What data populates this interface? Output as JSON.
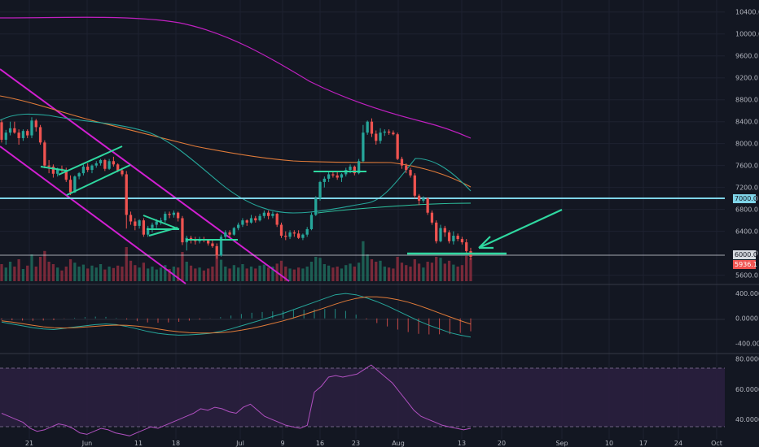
{
  "colors": {
    "background": "#131722",
    "grid": "#1e2230",
    "up": "#26a69a",
    "down": "#ef5350",
    "up_vol": "#1f6b5c",
    "down_vol": "#8b2d3d",
    "ma_fast": "#26a69a",
    "ma_mid": "#e07b39",
    "ma_slow": "#c020c0",
    "channel": "#d21fd2",
    "annotation": "#2fd8a0",
    "level": "#7fd4e8",
    "rsi": "#b050c0",
    "rsi_band": "#2a1f3e",
    "price_label_bg": "#ef5350"
  },
  "chart_data": [
    {
      "type": "candlestick",
      "pane": "price",
      "y_axis": {
        "ticks": [
          "10400.0",
          "10000.0",
          "9600.0",
          "9200.0",
          "8800.0",
          "8400.0",
          "8000.0",
          "7600.0",
          "7200.0",
          "7000.0",
          "6800.0",
          "6400.0",
          "6000.0",
          "5600.0"
        ],
        "range": [
          5550,
          10500
        ]
      },
      "x_axis": {
        "ticks": [
          "21",
          "Jun",
          "11",
          "18",
          "Jul",
          "9",
          "16",
          "23",
          "Aug",
          "13",
          "20",
          "Sep",
          "10",
          "17",
          "24",
          "Oct"
        ]
      },
      "levels": [
        {
          "name": "resistance",
          "value": 7000,
          "label": "7000.0"
        },
        {
          "name": "support",
          "value": 6000,
          "label": "6000.0"
        }
      ],
      "last_price_label": "5936.1",
      "candles": [
        [
          8390,
          8430,
          8020,
          8070
        ],
        [
          8070,
          8250,
          7980,
          8200
        ],
        [
          8200,
          8400,
          8150,
          8280
        ],
        [
          8280,
          8400,
          8180,
          8200
        ],
        [
          8200,
          8260,
          7980,
          8100
        ],
        [
          8100,
          8260,
          8050,
          8230
        ],
        [
          8230,
          8260,
          8100,
          8150
        ],
        [
          8150,
          8480,
          8100,
          8420
        ],
        [
          8420,
          8450,
          8220,
          8300
        ],
        [
          8300,
          8340,
          7980,
          8020
        ],
        [
          8020,
          8060,
          7550,
          7600
        ],
        [
          7600,
          7700,
          7460,
          7580
        ],
        [
          7580,
          7620,
          7380,
          7450
        ],
        [
          7450,
          7560,
          7400,
          7540
        ],
        [
          7540,
          7600,
          7480,
          7520
        ],
        [
          7520,
          7560,
          7300,
          7340
        ],
        [
          7340,
          7420,
          7060,
          7110
        ],
        [
          7110,
          7420,
          7100,
          7400
        ],
        [
          7400,
          7480,
          7350,
          7460
        ],
        [
          7460,
          7620,
          7420,
          7580
        ],
        [
          7580,
          7640,
          7480,
          7520
        ],
        [
          7520,
          7620,
          7460,
          7600
        ],
        [
          7600,
          7680,
          7560,
          7640
        ],
        [
          7640,
          7720,
          7600,
          7700
        ],
        [
          7700,
          7720,
          7500,
          7540
        ],
        [
          7540,
          7720,
          7520,
          7680
        ],
        [
          7680,
          7760,
          7580,
          7620
        ],
        [
          7620,
          7640,
          7480,
          7510
        ],
        [
          7510,
          7560,
          7400,
          7440
        ],
        [
          7440,
          7500,
          6450,
          6700
        ],
        [
          6700,
          6760,
          6520,
          6580
        ],
        [
          6580,
          6640,
          6420,
          6500
        ],
        [
          6500,
          6620,
          6450,
          6600
        ],
        [
          6600,
          6640,
          6300,
          6340
        ],
        [
          6340,
          6500,
          6300,
          6460
        ],
        [
          6460,
          6560,
          6380,
          6520
        ],
        [
          6520,
          6620,
          6460,
          6580
        ],
        [
          6580,
          6650,
          6520,
          6600
        ],
        [
          6600,
          6760,
          6560,
          6720
        ],
        [
          6720,
          6760,
          6640,
          6700
        ],
        [
          6700,
          6780,
          6650,
          6740
        ],
        [
          6740,
          6760,
          6580,
          6640
        ],
        [
          6640,
          6680,
          6150,
          6200
        ],
        [
          6200,
          6320,
          6050,
          6280
        ],
        [
          6280,
          6320,
          6180,
          6240
        ],
        [
          6240,
          6300,
          6160,
          6220
        ],
        [
          6220,
          6300,
          6180,
          6260
        ],
        [
          6260,
          6300,
          6200,
          6240
        ],
        [
          6240,
          6260,
          6140,
          6180
        ],
        [
          6180,
          6240,
          6100,
          6130
        ],
        [
          6130,
          6180,
          5900,
          5960
        ],
        [
          5960,
          6340,
          5940,
          6300
        ],
        [
          6300,
          6420,
          6260,
          6380
        ],
        [
          6380,
          6420,
          6280,
          6340
        ],
        [
          6340,
          6480,
          6320,
          6460
        ],
        [
          6460,
          6560,
          6420,
          6520
        ],
        [
          6520,
          6640,
          6480,
          6600
        ],
        [
          6600,
          6620,
          6500,
          6560
        ],
        [
          6560,
          6700,
          6540,
          6640
        ],
        [
          6640,
          6680,
          6560,
          6600
        ],
        [
          6600,
          6720,
          6580,
          6680
        ],
        [
          6680,
          6780,
          6640,
          6740
        ],
        [
          6740,
          6780,
          6620,
          6680
        ],
        [
          6680,
          6760,
          6640,
          6720
        ],
        [
          6720,
          6740,
          6480,
          6520
        ],
        [
          6520,
          6560,
          6280,
          6320
        ],
        [
          6320,
          6400,
          6240,
          6300
        ],
        [
          6300,
          6420,
          6260,
          6380
        ],
        [
          6380,
          6420,
          6300,
          6360
        ],
        [
          6360,
          6420,
          6260,
          6280
        ],
        [
          6280,
          6360,
          6240,
          6340
        ],
        [
          6340,
          6480,
          6300,
          6440
        ],
        [
          6440,
          6740,
          6420,
          6700
        ],
        [
          6700,
          7040,
          6680,
          7000
        ],
        [
          7000,
          7320,
          6960,
          7300
        ],
        [
          7300,
          7400,
          7200,
          7360
        ],
        [
          7360,
          7480,
          7300,
          7440
        ],
        [
          7440,
          7480,
          7380,
          7420
        ],
        [
          7420,
          7480,
          7340,
          7380
        ],
        [
          7380,
          7460,
          7300,
          7440
        ],
        [
          7440,
          7560,
          7400,
          7520
        ],
        [
          7520,
          7620,
          7460,
          7580
        ],
        [
          7580,
          7600,
          7420,
          7460
        ],
        [
          7460,
          7720,
          7440,
          7680
        ],
        [
          7680,
          8340,
          7660,
          8200
        ],
        [
          8200,
          8420,
          8160,
          8400
        ],
        [
          8400,
          8460,
          8120,
          8180
        ],
        [
          8180,
          8240,
          7980,
          8050
        ],
        [
          8050,
          8280,
          8000,
          8200
        ],
        [
          8200,
          8260,
          8140,
          8220
        ],
        [
          8220,
          8260,
          8160,
          8200
        ],
        [
          8200,
          8240,
          8150,
          8170
        ],
        [
          8170,
          8200,
          7700,
          7720
        ],
        [
          7720,
          7760,
          7540,
          7600
        ],
        [
          7600,
          7640,
          7460,
          7520
        ],
        [
          7520,
          7560,
          7380,
          7420
        ],
        [
          7420,
          7460,
          7000,
          7050
        ],
        [
          7050,
          7080,
          6880,
          6960
        ],
        [
          6960,
          7040,
          6920,
          7000
        ],
        [
          7000,
          7020,
          6700,
          6740
        ],
        [
          6740,
          6780,
          6520,
          6560
        ],
        [
          6560,
          6600,
          6180,
          6220
        ],
        [
          6220,
          6520,
          6200,
          6460
        ],
        [
          6460,
          6500,
          6300,
          6380
        ],
        [
          6380,
          6420,
          6180,
          6220
        ],
        [
          6220,
          6400,
          6160,
          6320
        ],
        [
          6320,
          6360,
          6220,
          6260
        ],
        [
          6260,
          6300,
          6160,
          6200
        ],
        [
          6200,
          6260,
          6000,
          6040
        ],
        [
          6040,
          6100,
          5880,
          5936
        ]
      ],
      "volume_ratios": [
        0.35,
        0.28,
        0.4,
        0.3,
        0.45,
        0.25,
        0.32,
        0.55,
        0.3,
        0.5,
        0.62,
        0.4,
        0.35,
        0.28,
        0.22,
        0.3,
        0.45,
        0.38,
        0.3,
        0.34,
        0.26,
        0.32,
        0.28,
        0.35,
        0.24,
        0.3,
        0.27,
        0.32,
        0.3,
        0.7,
        0.42,
        0.33,
        0.28,
        0.38,
        0.26,
        0.3,
        0.24,
        0.28,
        0.33,
        0.25,
        0.3,
        0.28,
        0.6,
        0.4,
        0.32,
        0.26,
        0.28,
        0.22,
        0.26,
        0.3,
        0.52,
        0.44,
        0.3,
        0.26,
        0.33,
        0.28,
        0.35,
        0.26,
        0.3,
        0.26,
        0.32,
        0.34,
        0.28,
        0.3,
        0.36,
        0.42,
        0.3,
        0.26,
        0.24,
        0.28,
        0.26,
        0.3,
        0.4,
        0.5,
        0.48,
        0.35,
        0.32,
        0.28,
        0.3,
        0.26,
        0.33,
        0.36,
        0.3,
        0.38,
        0.82,
        0.55,
        0.45,
        0.4,
        0.42,
        0.3,
        0.28,
        0.26,
        0.5,
        0.38,
        0.33,
        0.3,
        0.45,
        0.36,
        0.28,
        0.4,
        0.38,
        0.5,
        0.48,
        0.36,
        0.42,
        0.34,
        0.3,
        0.33,
        0.52,
        0.48
      ]
    },
    {
      "type": "line",
      "pane": "macd",
      "y_axis": {
        "ticks": [
          "400.0000",
          "0.0000",
          "-400.0000"
        ],
        "range": [
          -500,
          480
        ]
      },
      "series": [
        {
          "color": "#26a69a",
          "values": [
            -60,
            -90,
            -120,
            -150,
            -170,
            -180,
            -160,
            -140,
            -120,
            -100,
            -90,
            -100,
            -130,
            -170,
            -210,
            -240,
            -260,
            -270,
            -265,
            -255,
            -240,
            -210,
            -170,
            -120,
            -70,
            -20,
            30,
            80,
            140,
            200,
            260,
            320,
            380,
            400,
            380,
            330,
            270,
            200,
            120,
            40,
            -40,
            -110,
            -170,
            -230,
            -270,
            -300
          ]
        },
        {
          "color": "#e07b39",
          "values": [
            -40,
            -60,
            -85,
            -110,
            -135,
            -150,
            -155,
            -150,
            -140,
            -128,
            -115,
            -108,
            -112,
            -125,
            -145,
            -170,
            -195,
            -215,
            -228,
            -235,
            -236,
            -230,
            -215,
            -190,
            -160,
            -122,
            -82,
            -40,
            8,
            60,
            115,
            170,
            228,
            280,
            320,
            345,
            345,
            330,
            300,
            260,
            208,
            148,
            86,
            24,
            -36,
            -92
          ]
        }
      ]
    },
    {
      "type": "line",
      "pane": "rsi",
      "y_axis": {
        "ticks": [
          "80.0000",
          "60.0000",
          "40.0000"
        ],
        "range": [
          27,
          82
        ]
      },
      "bands": [
        70,
        30
      ],
      "values": [
        44,
        42,
        40,
        38,
        34,
        32,
        33,
        35,
        37,
        36,
        34,
        31,
        30,
        32,
        34,
        33,
        31,
        30,
        29,
        31,
        33,
        35,
        34,
        36,
        38,
        40,
        42,
        44,
        47,
        46,
        48,
        47,
        45,
        44,
        48,
        50,
        46,
        42,
        40,
        38,
        36,
        35,
        34,
        36,
        58,
        62,
        68,
        69,
        68,
        69,
        70,
        73,
        76,
        72,
        68,
        64,
        58,
        52,
        46,
        42,
        40,
        38,
        36,
        35,
        34,
        33,
        34
      ]
    }
  ]
}
